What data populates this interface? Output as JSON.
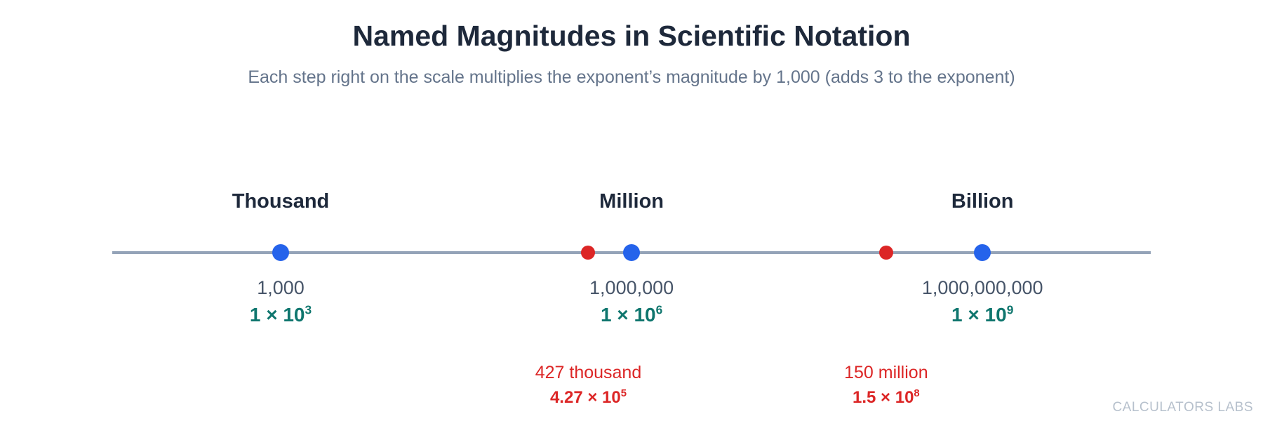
{
  "title": "Named Magnitudes in Scientific Notation",
  "subtitle": "Each step right on the scale multiplies the exponent’s magnitude by 1,000 (adds 3 to the exponent)",
  "colors": {
    "major_dot": "#2563eb",
    "minor_dot": "#dc2626",
    "sci_notation": "#0f766e",
    "axis": "#94a3b8"
  },
  "major_marks": [
    {
      "name": "Thousand",
      "value": "1,000",
      "coefficient": "1",
      "times": "×",
      "base": "10",
      "exponent": "3",
      "log10": 3
    },
    {
      "name": "Million",
      "value": "1,000,000",
      "coefficient": "1",
      "times": "×",
      "base": "10",
      "exponent": "6",
      "log10": 6
    },
    {
      "name": "Billion",
      "value": "1,000,000,000",
      "coefficient": "1",
      "times": "×",
      "base": "10",
      "exponent": "9",
      "log10": 9
    }
  ],
  "example_marks": [
    {
      "name": "427 thousand",
      "coefficient": "4.27",
      "times": "×",
      "base": "10",
      "exponent": "5",
      "log10": 5.6304
    },
    {
      "name": "150 million",
      "coefficient": "1.5",
      "times": "×",
      "base": "10",
      "exponent": "8",
      "log10": 8.1761
    }
  ],
  "watermark": "CALCULATORS LABS"
}
